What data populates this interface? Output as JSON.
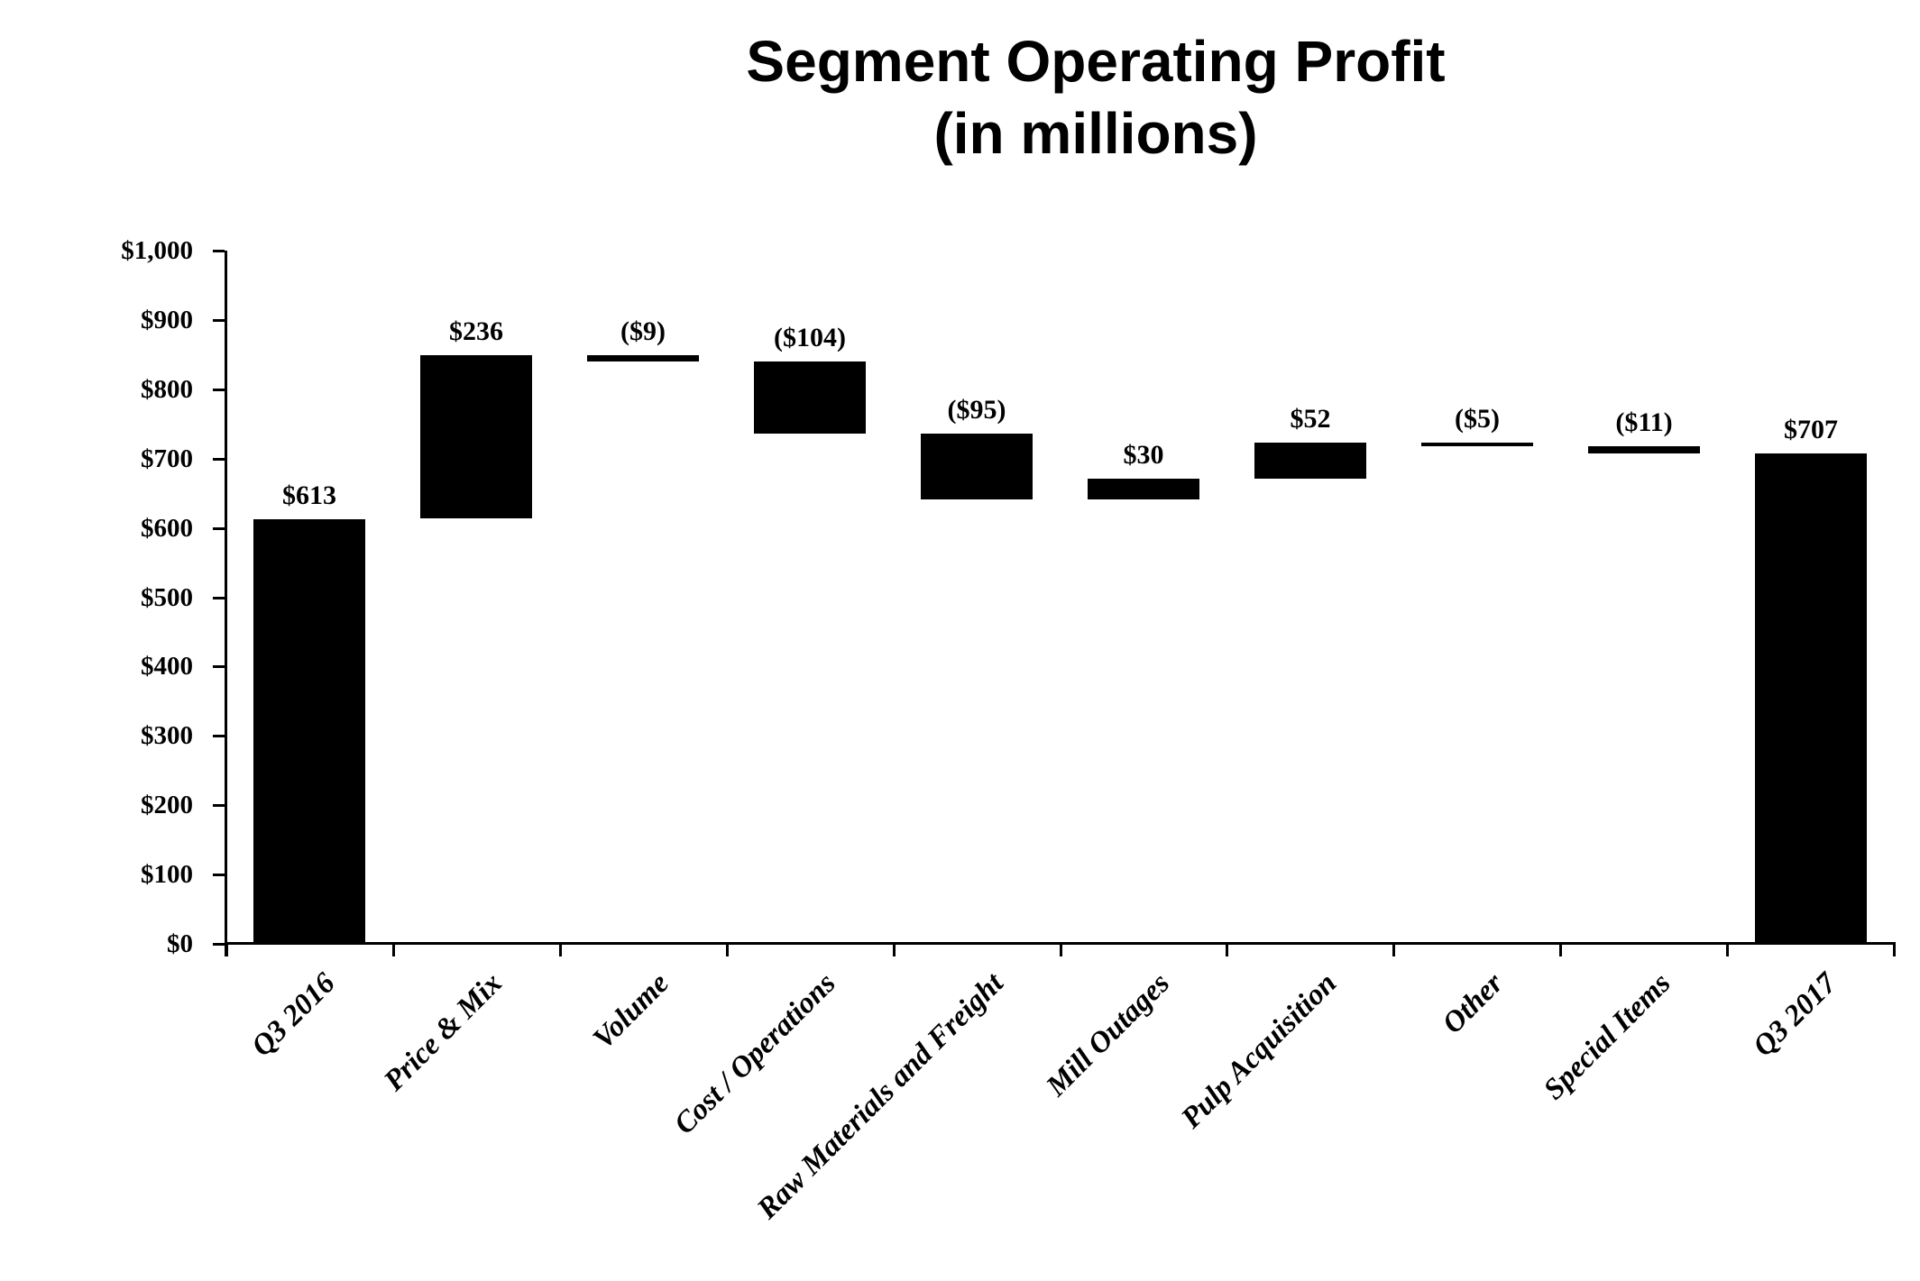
{
  "page": {
    "background_color": "#ffffff",
    "text_color": "#000000"
  },
  "title": {
    "line1": "Segment Operating Profit",
    "line2": "(in millions)"
  },
  "chart_data": {
    "type": "bar",
    "subtype": "waterfall",
    "title": "Segment Operating Profit",
    "subtitle": "(in millions)",
    "categories": [
      "Q3 2016",
      "Price & Mix",
      "Volume",
      "Cost / Operations",
      "Raw Materials and Freight",
      "Mill Outages",
      "Pulp Acquisition",
      "Other",
      "Special Items",
      "Q3 2017"
    ],
    "series": [
      {
        "name": "Segment Operating Profit",
        "values": [
          613,
          236,
          -9,
          -104,
          -95,
          30,
          52,
          -5,
          -11,
          707
        ]
      }
    ],
    "is_total": [
      true,
      false,
      false,
      false,
      false,
      false,
      false,
      false,
      false,
      true
    ],
    "bar_labels": [
      "$613",
      "$236",
      "($9)",
      "($104)",
      "($95)",
      "$30",
      "$52",
      "($5)",
      "($11)",
      "$707"
    ],
    "running_levels": {
      "starts": [
        0,
        613,
        849,
        840,
        736,
        641,
        671,
        723,
        718,
        0
      ],
      "ends": [
        613,
        849,
        840,
        736,
        641,
        671,
        723,
        718,
        707,
        707
      ]
    },
    "xlabel": "",
    "ylabel": "",
    "ylim": [
      0,
      1000
    ],
    "ytick_step": 100,
    "ytick_labels": [
      "$0",
      "$100",
      "$200",
      "$300",
      "$400",
      "$500",
      "$600",
      "$700",
      "$800",
      "$900",
      "$1,000"
    ],
    "grid": false,
    "legend_position": "none",
    "bar_color": "#000000",
    "axis_color": "#000000"
  }
}
